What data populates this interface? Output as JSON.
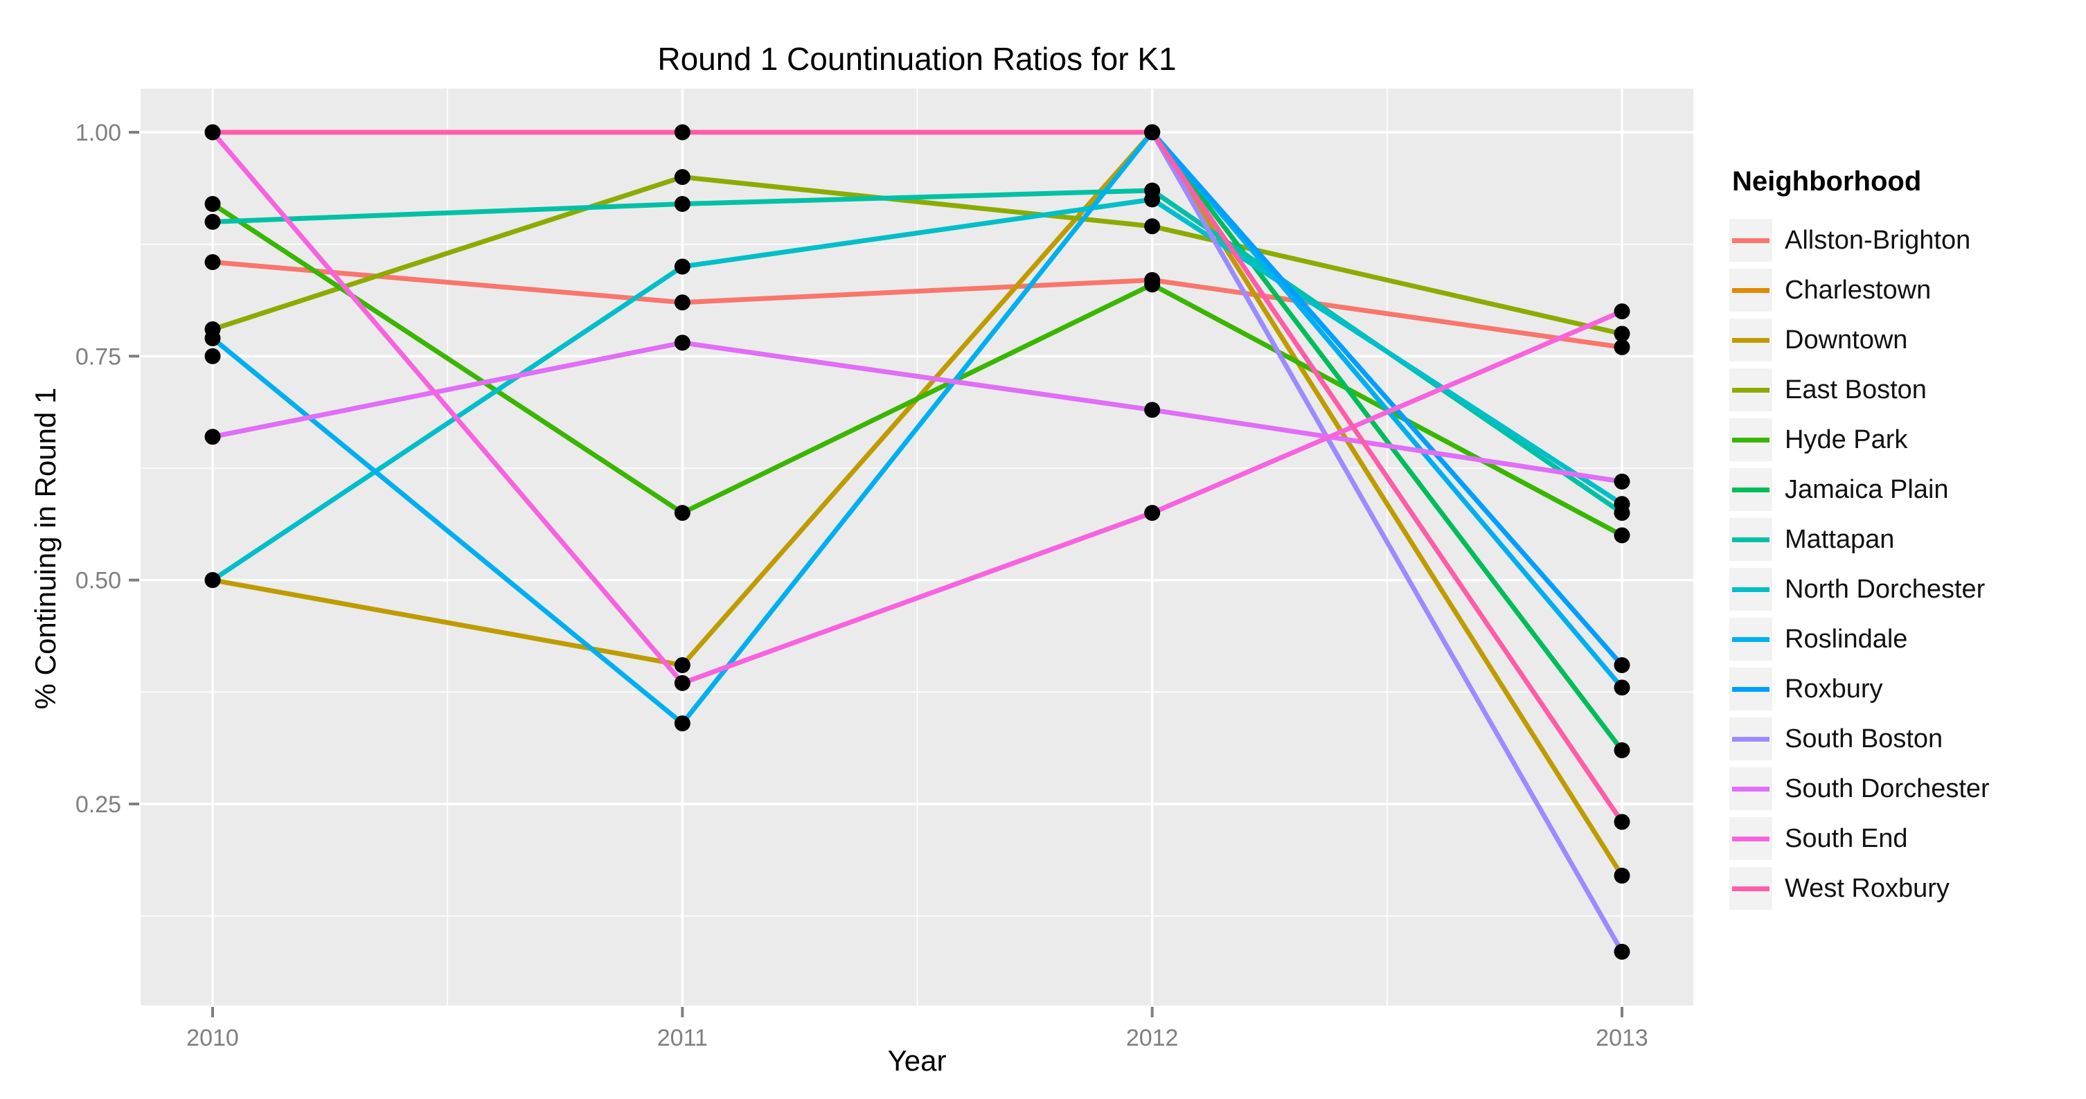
{
  "chart_data": {
    "type": "line",
    "title": "Round 1 Countinuation Ratios for K1",
    "xlabel": "Year",
    "ylabel": "% Continuing in Round 1",
    "legend_title": "Neighborhood",
    "x": [
      2010,
      2011,
      2012,
      2013
    ],
    "x_tick_labels": [
      "2010",
      "2011",
      "2012",
      "2013"
    ],
    "y_tick_labels": [
      "1.00",
      "0.75",
      "0.50",
      "0.25"
    ],
    "y_tick_values": [
      1.0,
      0.75,
      0.5,
      0.25
    ],
    "y_minor_values": [
      0.875,
      0.625,
      0.375,
      0.125
    ],
    "ylim": [
      0.03,
      1.05
    ],
    "grid": "on",
    "legend_position": "right",
    "panel_color": "#EBEBEB",
    "grid_color": "#FFFFFF",
    "tick_text_color": "#7F7F7F",
    "point_color": "#000000",
    "series": [
      {
        "name": "Allston-Brighton",
        "slug": "allston-brighton",
        "color": "#F8766D",
        "values": [
          0.855,
          0.81,
          0.835,
          0.76
        ]
      },
      {
        "name": "Charlestown",
        "slug": "charlestown",
        "color": "#E18A00",
        "values": [
          0.75,
          null,
          null,
          null
        ]
      },
      {
        "name": "Downtown",
        "slug": "downtown",
        "color": "#BE9C00",
        "values": [
          0.5,
          0.405,
          1.0,
          0.17
        ]
      },
      {
        "name": "East Boston",
        "slug": "east-boston",
        "color": "#8CAB00",
        "values": [
          0.78,
          0.95,
          0.895,
          0.775
        ]
      },
      {
        "name": "Hyde Park",
        "slug": "hyde-park",
        "color": "#39B600",
        "values": [
          0.92,
          0.575,
          0.83,
          0.55
        ]
      },
      {
        "name": "Jamaica Plain",
        "slug": "jamaica-plain",
        "color": "#00BD5C",
        "values": [
          null,
          null,
          1.0,
          0.31
        ]
      },
      {
        "name": "Mattapan",
        "slug": "mattapan",
        "color": "#00C1A5",
        "values": [
          0.9,
          0.92,
          0.935,
          0.575
        ]
      },
      {
        "name": "North Dorchester",
        "slug": "north-dorchester",
        "color": "#00BFC8",
        "values": [
          0.5,
          0.85,
          0.925,
          0.585
        ]
      },
      {
        "name": "Roslindale",
        "slug": "roslindale",
        "color": "#00AFF0",
        "values": [
          0.77,
          0.34,
          1.0,
          0.38
        ]
      },
      {
        "name": "Roxbury",
        "slug": "roxbury",
        "color": "#009FFF",
        "values": [
          null,
          null,
          1.0,
          0.405
        ]
      },
      {
        "name": "South Boston",
        "slug": "south-boston",
        "color": "#9B8BFF",
        "values": [
          null,
          null,
          1.0,
          0.085
        ]
      },
      {
        "name": "South Dorchester",
        "slug": "south-dorchester",
        "color": "#E06EF6",
        "values": [
          0.66,
          0.765,
          0.69,
          0.61
        ]
      },
      {
        "name": "South End",
        "slug": "south-end",
        "color": "#F763DE",
        "values": [
          1.0,
          0.385,
          0.575,
          0.8
        ]
      },
      {
        "name": "West Roxbury",
        "slug": "west-roxbury",
        "color": "#FF5CA8",
        "values": [
          1.0,
          1.0,
          1.0,
          0.23
        ]
      }
    ]
  }
}
